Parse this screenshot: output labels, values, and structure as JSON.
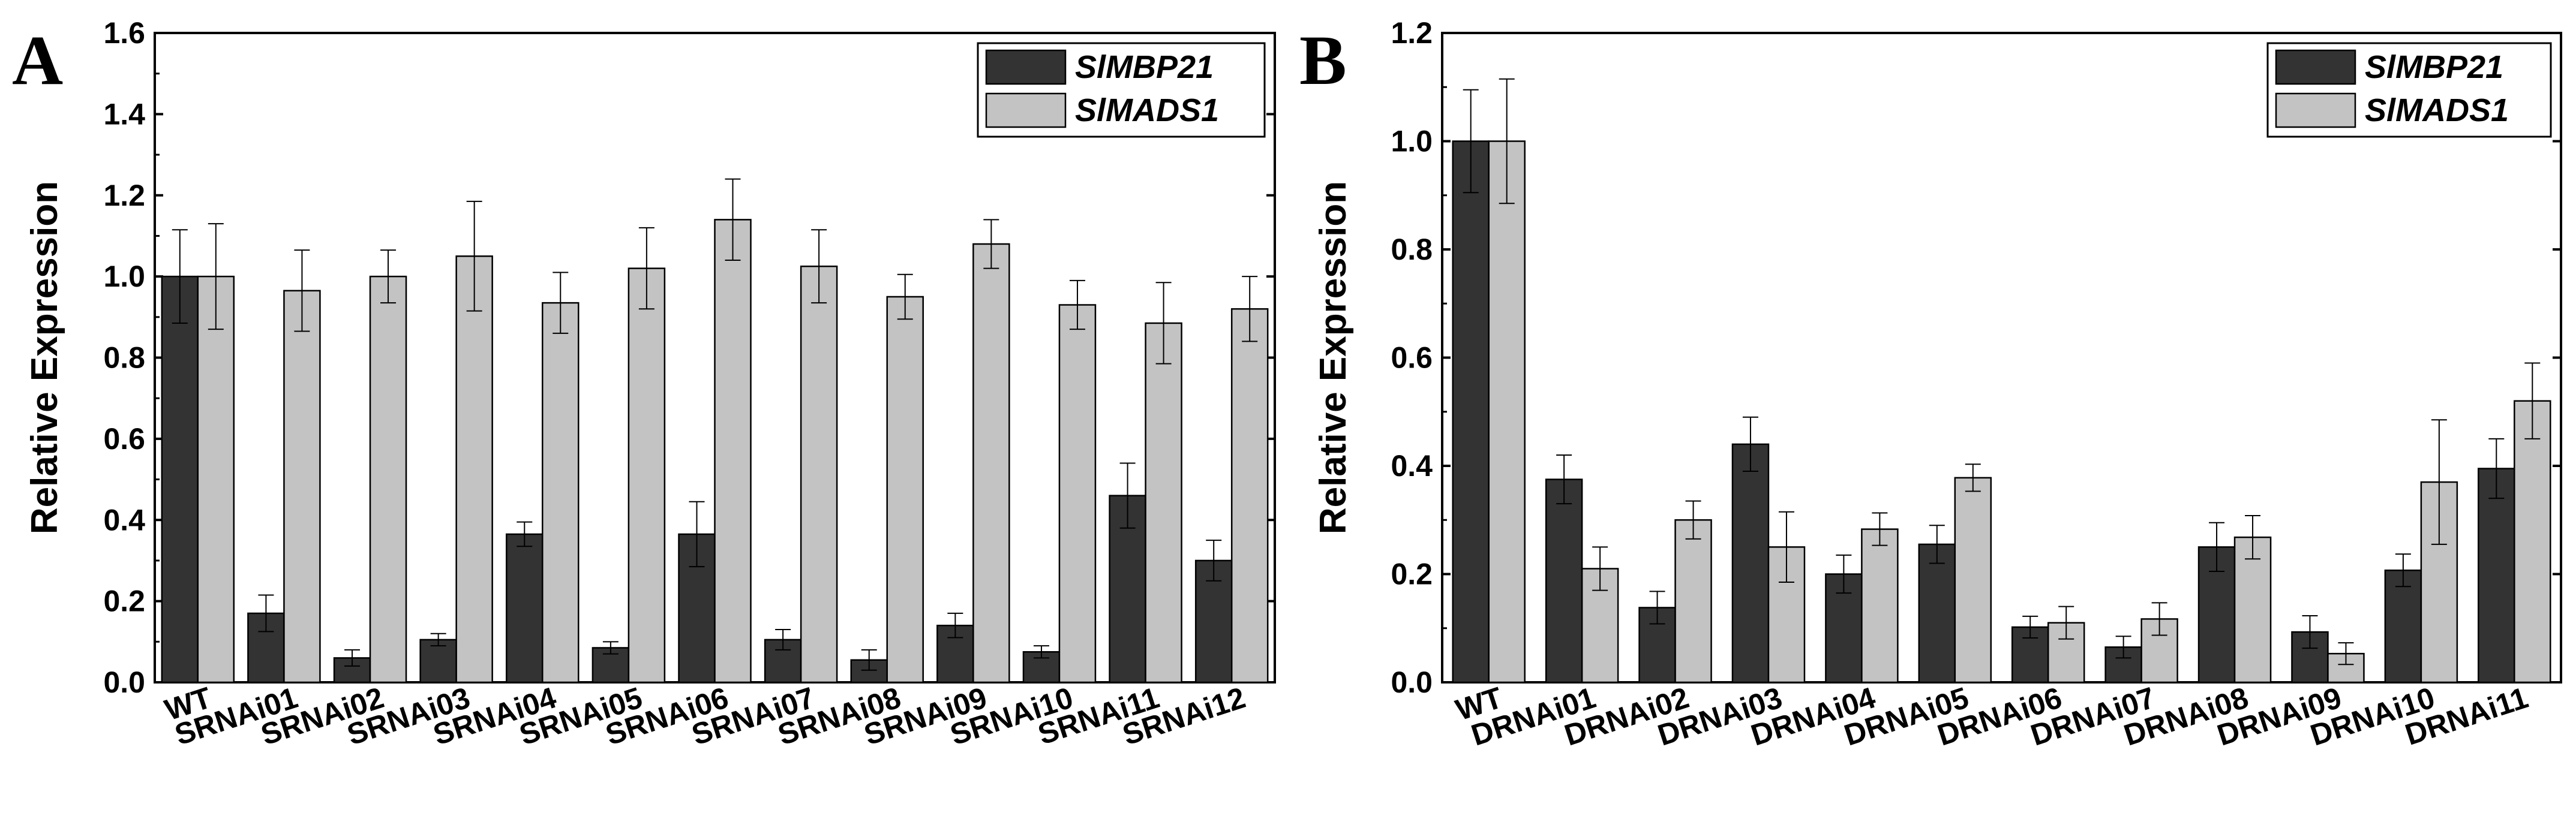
{
  "colors": {
    "series_dark": "#333333",
    "series_light": "#c3c3c3",
    "axis": "#000000"
  },
  "chart_data": [
    {
      "type": "bar",
      "panel": "A",
      "title": "",
      "xlabel": "",
      "ylabel": "Relative Expression",
      "ylim": [
        0.0,
        1.6
      ],
      "yticks": [
        "0.0",
        "0.2",
        "0.4",
        "0.6",
        "0.8",
        "1.0",
        "1.2",
        "1.4",
        "1.6"
      ],
      "categories": [
        "WT",
        "SRNAi01",
        "SRNAi02",
        "SRNAi03",
        "SRNAi04",
        "SRNAi05",
        "SRNAi06",
        "SRNAi07",
        "SRNAi08",
        "SRNAi09",
        "SRNAi10",
        "SRNAi11",
        "SRNAi12"
      ],
      "legend_position": "top-right",
      "series": [
        {
          "name": "SlMBP21",
          "values": [
            1.0,
            0.17,
            0.06,
            0.105,
            0.365,
            0.085,
            0.365,
            0.105,
            0.055,
            0.14,
            0.075,
            0.46,
            0.3
          ],
          "errors": [
            0.115,
            0.045,
            0.02,
            0.015,
            0.03,
            0.015,
            0.08,
            0.025,
            0.025,
            0.03,
            0.015,
            0.08,
            0.05
          ]
        },
        {
          "name": "SlMADS1",
          "values": [
            1.0,
            0.965,
            1.0,
            1.05,
            0.935,
            1.02,
            1.14,
            1.025,
            0.95,
            1.08,
            0.93,
            0.885,
            0.92
          ],
          "errors": [
            0.13,
            0.1,
            0.065,
            0.135,
            0.075,
            0.1,
            0.1,
            0.09,
            0.055,
            0.06,
            0.06,
            0.1,
            0.08
          ]
        }
      ]
    },
    {
      "type": "bar",
      "panel": "B",
      "title": "",
      "xlabel": "",
      "ylabel": "Relative Expression",
      "ylim": [
        0.0,
        1.2
      ],
      "yticks": [
        "0.0",
        "0.2",
        "0.4",
        "0.6",
        "0.8",
        "1.0",
        "1.2"
      ],
      "categories": [
        "WT",
        "DRNAi01",
        "DRNAi02",
        "DRNAi03",
        "DRNAi04",
        "DRNAi05",
        "DRNAi06",
        "DRNAi07",
        "DRNAi08",
        "DRNAi09",
        "DRNAi10",
        "DRNAi11"
      ],
      "legend_position": "top-right",
      "series": [
        {
          "name": "SlMBP21",
          "values": [
            1.0,
            0.375,
            0.138,
            0.44,
            0.2,
            0.255,
            0.102,
            0.065,
            0.25,
            0.093,
            0.207,
            0.395
          ],
          "errors": [
            0.095,
            0.045,
            0.03,
            0.05,
            0.035,
            0.035,
            0.02,
            0.02,
            0.045,
            0.03,
            0.03,
            0.055
          ]
        },
        {
          "name": "SlMADS1",
          "values": [
            1.0,
            0.21,
            0.3,
            0.25,
            0.283,
            0.378,
            0.11,
            0.117,
            0.268,
            0.053,
            0.37,
            0.52
          ],
          "errors": [
            0.115,
            0.04,
            0.035,
            0.065,
            0.03,
            0.025,
            0.03,
            0.03,
            0.04,
            0.02,
            0.115,
            0.07
          ]
        }
      ]
    }
  ]
}
